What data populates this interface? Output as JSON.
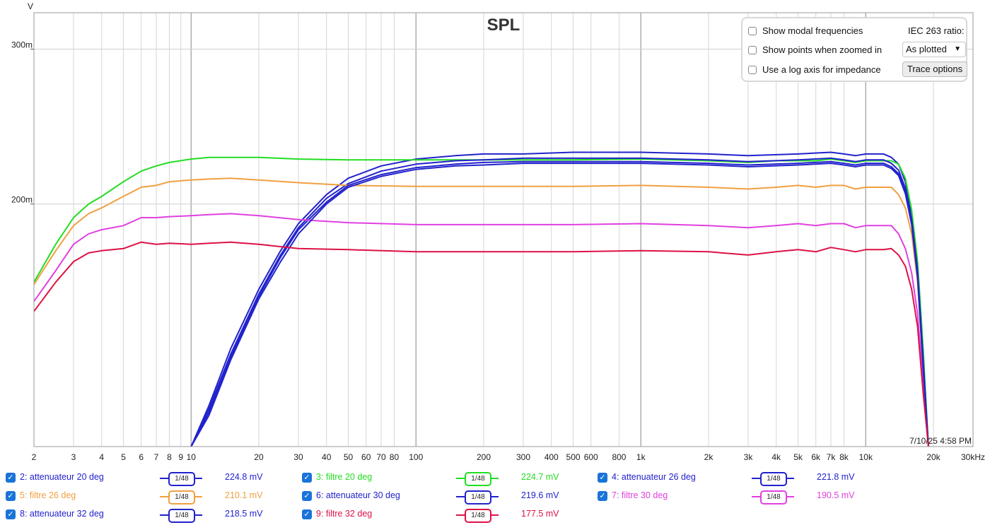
{
  "chart_data": {
    "type": "line",
    "title": "SPL",
    "ylabel": "V",
    "x_scale": "log",
    "xlim": [
      2,
      30000
    ],
    "ylim": [
      0.106,
      0.33
    ],
    "y_ticks": [
      {
        "value": 0.2,
        "label": "200m"
      },
      {
        "value": 0.3,
        "label": "300m"
      }
    ],
    "x_ticks": [
      {
        "value": 2,
        "label": "2"
      },
      {
        "value": 3,
        "label": "3"
      },
      {
        "value": 4,
        "label": "4"
      },
      {
        "value": 5,
        "label": "5"
      },
      {
        "value": 6,
        "label": "6"
      },
      {
        "value": 7,
        "label": "7"
      },
      {
        "value": 8,
        "label": "8"
      },
      {
        "value": 9,
        "label": "9"
      },
      {
        "value": 10,
        "label": "10"
      },
      {
        "value": 20,
        "label": "20"
      },
      {
        "value": 30,
        "label": "30"
      },
      {
        "value": 40,
        "label": "40"
      },
      {
        "value": 50,
        "label": "50"
      },
      {
        "value": 60,
        "label": "60"
      },
      {
        "value": 70,
        "label": "70"
      },
      {
        "value": 80,
        "label": "80"
      },
      {
        "value": 100,
        "label": "100"
      },
      {
        "value": 200,
        "label": "200"
      },
      {
        "value": 300,
        "label": "300"
      },
      {
        "value": 400,
        "label": "400"
      },
      {
        "value": 500,
        "label": "500"
      },
      {
        "value": 600,
        "label": "600"
      },
      {
        "value": 800,
        "label": "800"
      },
      {
        "value": 1000,
        "label": "1k"
      },
      {
        "value": 2000,
        "label": "2k"
      },
      {
        "value": 3000,
        "label": "3k"
      },
      {
        "value": 4000,
        "label": "4k"
      },
      {
        "value": 5000,
        "label": "5k"
      },
      {
        "value": 6000,
        "label": "6k"
      },
      {
        "value": 7000,
        "label": "7k"
      },
      {
        "value": 8000,
        "label": "8k"
      },
      {
        "value": 10000,
        "label": "10k"
      },
      {
        "value": 20000,
        "label": "20k"
      },
      {
        "value": 30000,
        "label": "30kHz"
      }
    ],
    "grid": true,
    "timestamp": "7/10/25 4:58 PM",
    "series": [
      {
        "name": "2: attenuateur 20 deg",
        "color": "#2222cc",
        "x": [
          10,
          12,
          15,
          20,
          25,
          30,
          40,
          50,
          70,
          100,
          150,
          200,
          300,
          500,
          1000,
          2000,
          3000,
          5000,
          7000,
          8000,
          9000,
          10000,
          11000,
          12000,
          13000,
          14000,
          15000,
          16000,
          17000,
          18000,
          19000
        ],
        "y": [
          0.106,
          0.118,
          0.137,
          0.16,
          0.177,
          0.19,
          0.205,
          0.214,
          0.221,
          0.225,
          0.227,
          0.228,
          0.228,
          0.229,
          0.229,
          0.228,
          0.227,
          0.228,
          0.229,
          0.228,
          0.227,
          0.228,
          0.228,
          0.228,
          0.226,
          0.222,
          0.212,
          0.195,
          0.17,
          0.135,
          0.106
        ]
      },
      {
        "name": "3: filtre 20 deg",
        "color": "#22dd22",
        "x": [
          2,
          2.5,
          3,
          3.5,
          4,
          5,
          6,
          7,
          8,
          10,
          12,
          15,
          20,
          30,
          50,
          100,
          200,
          500,
          1000,
          2000,
          3000,
          4000,
          5000,
          6000,
          7000,
          8000,
          9000,
          10000,
          11000,
          12000,
          13000,
          14000,
          15000,
          16000,
          17000,
          18000,
          19000
        ],
        "y": [
          0.163,
          0.18,
          0.193,
          0.2,
          0.204,
          0.212,
          0.218,
          0.221,
          0.223,
          0.225,
          0.226,
          0.226,
          0.226,
          0.225,
          0.2245,
          0.2245,
          0.2245,
          0.2245,
          0.225,
          0.224,
          0.223,
          0.224,
          0.224,
          0.224,
          0.225,
          0.224,
          0.223,
          0.224,
          0.224,
          0.224,
          0.224,
          0.222,
          0.214,
          0.197,
          0.172,
          0.137,
          0.106
        ]
      },
      {
        "name": "4: attenuateur 26 deg",
        "color": "#2222cc",
        "x": [
          10,
          12,
          15,
          20,
          25,
          30,
          40,
          50,
          70,
          100,
          150,
          200,
          300,
          500,
          1000,
          2000,
          3000,
          5000,
          7000,
          8000,
          9000,
          10000,
          11000,
          12000,
          13000,
          14000,
          15000,
          16000,
          17000,
          18000,
          19000
        ],
        "y": [
          0.106,
          0.117,
          0.135,
          0.158,
          0.175,
          0.188,
          0.203,
          0.211,
          0.218,
          0.222,
          0.224,
          0.2245,
          0.2255,
          0.2255,
          0.2255,
          0.2245,
          0.2235,
          0.2245,
          0.2255,
          0.2245,
          0.2235,
          0.2245,
          0.2245,
          0.2245,
          0.2225,
          0.2185,
          0.2085,
          0.1925,
          0.168,
          0.133,
          0.106
        ]
      },
      {
        "name": "5: filtre 26 deg",
        "color": "#f0a040",
        "x": [
          2,
          2.5,
          3,
          3.5,
          4,
          5,
          6,
          7,
          8,
          10,
          12,
          15,
          20,
          30,
          50,
          100,
          200,
          500,
          1000,
          2000,
          3000,
          4000,
          5000,
          6000,
          7000,
          8000,
          9000,
          10000,
          11000,
          12000,
          13000,
          14000,
          15000,
          16000,
          17000,
          18000,
          19000
        ],
        "y": [
          0.162,
          0.177,
          0.189,
          0.195,
          0.198,
          0.204,
          0.209,
          0.21,
          0.212,
          0.213,
          0.2135,
          0.214,
          0.213,
          0.2115,
          0.21,
          0.2095,
          0.2095,
          0.2095,
          0.21,
          0.209,
          0.208,
          0.209,
          0.21,
          0.209,
          0.21,
          0.21,
          0.208,
          0.209,
          0.209,
          0.209,
          0.209,
          0.205,
          0.198,
          0.185,
          0.163,
          0.13,
          0.106
        ]
      },
      {
        "name": "6: attenuateur 30 deg",
        "color": "#2222cc",
        "x": [
          10,
          12,
          15,
          20,
          25,
          30,
          40,
          50,
          70,
          100,
          150,
          200,
          300,
          500,
          1000,
          2000,
          3000,
          5000,
          7000,
          8000,
          9000,
          10000,
          11000,
          12000,
          13000,
          14000,
          15000,
          16000,
          17000,
          18000,
          19000
        ],
        "y": [
          0.106,
          0.116,
          0.134,
          0.157,
          0.174,
          0.187,
          0.201,
          0.21,
          0.216,
          0.22,
          0.222,
          0.223,
          0.2235,
          0.2235,
          0.2235,
          0.2225,
          0.2215,
          0.2225,
          0.2235,
          0.2225,
          0.2215,
          0.2225,
          0.2225,
          0.2225,
          0.2205,
          0.2165,
          0.2065,
          0.1905,
          0.166,
          0.131,
          0.106
        ]
      },
      {
        "name": "7: filtre 30 deg",
        "color": "#e040e0",
        "x": [
          2,
          2.5,
          3,
          3.5,
          4,
          5,
          6,
          7,
          8,
          10,
          12,
          15,
          20,
          30,
          50,
          100,
          200,
          500,
          1000,
          2000,
          3000,
          4000,
          5000,
          6000,
          7000,
          8000,
          9000,
          10000,
          11000,
          12000,
          13000,
          14000,
          15000,
          16000,
          17000,
          18000,
          19000
        ],
        "y": [
          0.155,
          0.168,
          0.18,
          0.185,
          0.187,
          0.189,
          0.193,
          0.193,
          0.1935,
          0.194,
          0.1945,
          0.195,
          0.194,
          0.192,
          0.1905,
          0.1895,
          0.1895,
          0.1895,
          0.19,
          0.189,
          0.188,
          0.189,
          0.19,
          0.189,
          0.19,
          0.19,
          0.188,
          0.189,
          0.189,
          0.189,
          0.189,
          0.185,
          0.178,
          0.167,
          0.15,
          0.125,
          0.106
        ]
      },
      {
        "name": "8: attenuateur 32 deg",
        "color": "#2222cc",
        "x": [
          10,
          12,
          15,
          20,
          25,
          30,
          40,
          50,
          70,
          100,
          150,
          200,
          300,
          500,
          1000,
          2000,
          3000,
          5000,
          7000,
          8000,
          9000,
          10000,
          11000,
          12000,
          13000,
          14000,
          15000,
          16000,
          17000,
          18000,
          19000
        ],
        "y": [
          0.106,
          0.115,
          0.133,
          0.156,
          0.172,
          0.185,
          0.2,
          0.209,
          0.215,
          0.219,
          0.221,
          0.2215,
          0.2225,
          0.2225,
          0.2225,
          0.2215,
          0.2205,
          0.2215,
          0.2225,
          0.2215,
          0.2205,
          0.2215,
          0.2215,
          0.2215,
          0.2195,
          0.2155,
          0.2055,
          0.1895,
          0.165,
          0.13,
          0.106
        ]
      },
      {
        "name": "9: filtre 32 deg",
        "color": "#dd1144",
        "x": [
          2,
          2.5,
          3,
          3.5,
          4,
          5,
          6,
          7,
          8,
          10,
          12,
          15,
          20,
          30,
          50,
          100,
          200,
          500,
          1000,
          2000,
          3000,
          4000,
          5000,
          6000,
          7000,
          8000,
          9000,
          10000,
          11000,
          12000,
          13000,
          14000,
          15000,
          16000,
          17000,
          18000,
          19000
        ],
        "y": [
          0.151,
          0.163,
          0.172,
          0.176,
          0.177,
          0.178,
          0.181,
          0.18,
          0.1805,
          0.18,
          0.1805,
          0.181,
          0.18,
          0.178,
          0.1775,
          0.1765,
          0.1765,
          0.1765,
          0.177,
          0.1765,
          0.175,
          0.1765,
          0.1775,
          0.1765,
          0.1785,
          0.1775,
          0.1765,
          0.1775,
          0.1775,
          0.1775,
          0.178,
          0.175,
          0.17,
          0.16,
          0.145,
          0.122,
          0.106
        ]
      }
    ]
  },
  "options": {
    "show_modal": "Show modal frequencies",
    "show_points": "Show points when zoomed in",
    "log_axis": "Use a log axis for impedance",
    "iec_label": "IEC 263 ratio:",
    "iec_value": "As plotted",
    "trace_options": "Trace options"
  },
  "legend": [
    {
      "name": "2: attenuateur 20 deg",
      "smoothing": "1/48",
      "value": "224.8 mV",
      "color": "#2222cc",
      "check": "✓"
    },
    {
      "name": "3: filtre 20 deg",
      "smoothing": "1/48",
      "value": "224.7 mV",
      "color": "#22dd22",
      "check": "✓"
    },
    {
      "name": "4: attenuateur 26 deg",
      "smoothing": "1/48",
      "value": "221.8 mV",
      "color": "#2222cc",
      "check": "✓"
    },
    {
      "name": "5: filtre 26 deg",
      "smoothing": "1/48",
      "value": "210.1 mV",
      "color": "#f0a040",
      "check": "✓"
    },
    {
      "name": "6: attenuateur 30 deg",
      "smoothing": "1/48",
      "value": "219.6 mV",
      "color": "#2222cc",
      "check": "✓"
    },
    {
      "name": "7: filtre 30 deg",
      "smoothing": "1/48",
      "value": "190.5 mV",
      "color": "#e040e0",
      "check": "✓"
    },
    {
      "name": "8: attenuateur 32 deg",
      "smoothing": "1/48",
      "value": "218.5 mV",
      "color": "#2222cc",
      "check": "✓"
    },
    {
      "name": "9: filtre 32 deg",
      "smoothing": "1/48",
      "value": "177.5 mV",
      "color": "#dd1144",
      "check": "✓"
    }
  ]
}
